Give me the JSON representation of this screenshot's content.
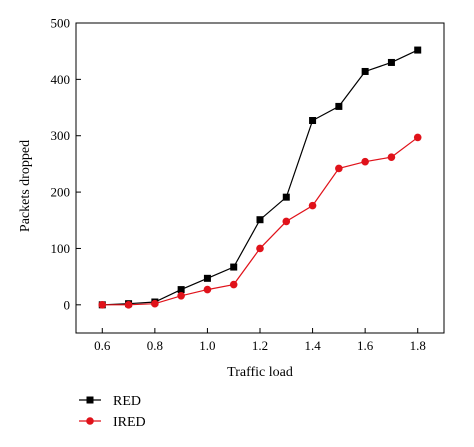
{
  "chart_data": {
    "type": "line",
    "title": "",
    "xlabel": "Traffic load",
    "ylabel": "Packets dropped",
    "x": [
      0.6,
      0.7,
      0.8,
      0.9,
      1.0,
      1.1,
      1.2,
      1.3,
      1.4,
      1.5,
      1.6,
      1.7,
      1.8
    ],
    "xlim": [
      0.5,
      1.9
    ],
    "ylim": [
      -50,
      500
    ],
    "xticks": [
      0.6,
      0.8,
      1.0,
      1.2,
      1.4,
      1.6,
      1.8
    ],
    "xtick_labels": [
      "0.6",
      "0.8",
      "1.0",
      "1.2",
      "1.4",
      "1.6",
      "1.8"
    ],
    "yticks": [
      0,
      100,
      200,
      300,
      400,
      500
    ],
    "ytick_labels": [
      "0",
      "100",
      "200",
      "300",
      "400",
      "500"
    ],
    "grid": false,
    "legend_position": "bottom-left, below plot",
    "series": [
      {
        "name": "RED",
        "color": "#000000",
        "marker": "square",
        "values": [
          0,
          2,
          5,
          27,
          47,
          67,
          151,
          191,
          327,
          352,
          414,
          430,
          452
        ]
      },
      {
        "name": "IRED",
        "color": "#e0121a",
        "marker": "circle",
        "values": [
          0,
          0,
          2,
          16,
          27,
          36,
          100,
          148,
          176,
          242,
          254,
          262,
          297
        ]
      }
    ]
  }
}
